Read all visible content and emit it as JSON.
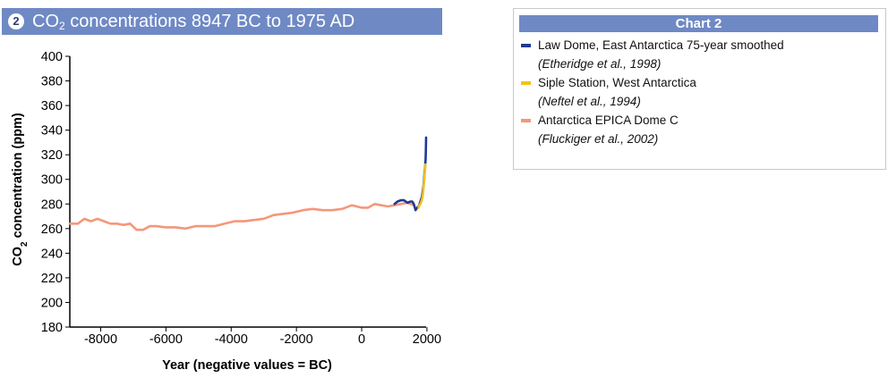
{
  "header": {
    "badge": "2",
    "title_pre": "CO",
    "title_sub": "2",
    "title_post": " concentrations 8947 BC to 1975 AD"
  },
  "legend": {
    "title": "Chart 2",
    "items": [
      {
        "name": "Law Dome, East Antarctica 75-year smoothed",
        "cite": "(Etheridge et al., 1998)",
        "color": "#1f3a93"
      },
      {
        "name": "Siple Station, West Antarctica",
        "cite": "(Neftel et al., 1994)",
        "color": "#f2c21b"
      },
      {
        "name": "Antarctica EPICA Dome C",
        "cite": "(Fluckiger et al., 2002)",
        "color": "#f4977a"
      }
    ]
  },
  "chart_data": {
    "type": "line",
    "title": "CO2 concentrations 8947 BC to 1975 AD",
    "xlabel": "Year (negative values = BC)",
    "ylabel_pre": "CO",
    "ylabel_sub": "2",
    "ylabel_post": " concentration (ppm)",
    "xlim": [
      -8947,
      1975
    ],
    "ylim": [
      180,
      400
    ],
    "xticks": [
      -8000,
      -6000,
      -4000,
      -2000,
      0,
      2000
    ],
    "yticks": [
      180,
      200,
      220,
      240,
      260,
      280,
      300,
      320,
      340,
      360,
      380,
      400
    ],
    "grid": false,
    "legend_position": "right",
    "series": [
      {
        "name": "Antarctica EPICA Dome C",
        "color": "#f4977a",
        "x": [
          -8947,
          -8700,
          -8500,
          -8300,
          -8100,
          -7900,
          -7700,
          -7500,
          -7300,
          -7100,
          -6900,
          -6700,
          -6500,
          -6300,
          -6000,
          -5700,
          -5400,
          -5100,
          -4800,
          -4500,
          -4200,
          -3900,
          -3600,
          -3300,
          -3000,
          -2700,
          -2400,
          -2100,
          -1800,
          -1500,
          -1200,
          -900,
          -600,
          -300,
          0,
          200,
          400,
          600,
          800,
          1000,
          1200,
          1400,
          1600
        ],
        "y": [
          264,
          264,
          268,
          266,
          268,
          266,
          264,
          264,
          263,
          264,
          259,
          259,
          262,
          262,
          261,
          261,
          260,
          262,
          262,
          262,
          264,
          266,
          266,
          267,
          268,
          271,
          272,
          273,
          275,
          276,
          275,
          275,
          276,
          279,
          277,
          277,
          280,
          279,
          278,
          279,
          280,
          281,
          279
        ]
      },
      {
        "name": "Law Dome, East Antarctica 75-year smoothed",
        "color": "#1f3a93",
        "x": [
          1010,
          1100,
          1200,
          1300,
          1400,
          1500,
          1550,
          1600,
          1650,
          1700,
          1750,
          1800,
          1850,
          1900,
          1925,
          1950,
          1960,
          1970,
          1975
        ],
        "y": [
          280,
          282,
          283,
          283,
          281,
          282,
          282,
          280,
          275,
          277,
          278,
          282,
          286,
          296,
          305,
          312,
          317,
          326,
          334
        ]
      },
      {
        "name": "Siple Station, West Antarctica",
        "color": "#f2c21b",
        "x": [
          1744,
          1770,
          1800,
          1830,
          1860,
          1880,
          1900,
          1920,
          1940,
          1953
        ],
        "y": [
          277,
          279,
          280,
          282,
          285,
          288,
          295,
          300,
          307,
          312
        ]
      }
    ]
  }
}
